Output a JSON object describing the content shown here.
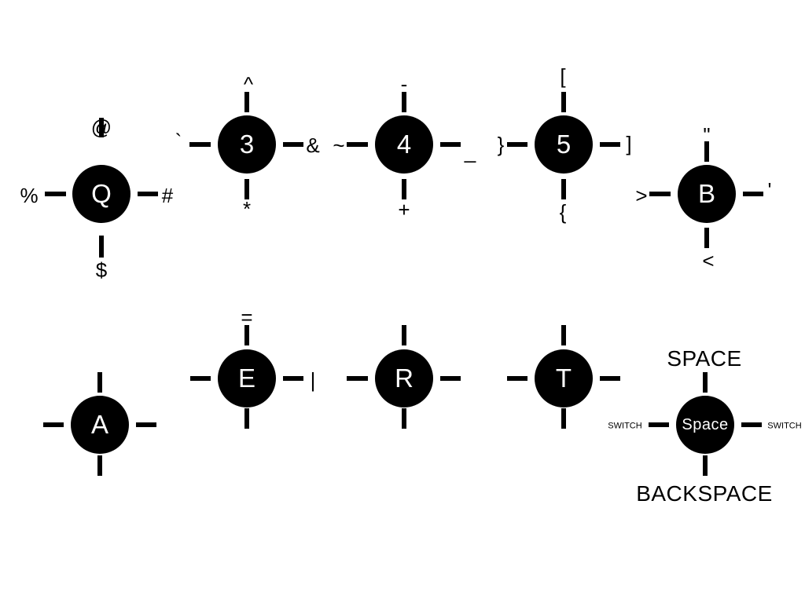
{
  "keys": [
    {
      "id": "q",
      "label": "Q",
      "top": "@",
      "right": "#",
      "bottom": "$",
      "left": "%"
    },
    {
      "id": "3",
      "label": "3",
      "top": "^",
      "right": "&",
      "bottom": "*",
      "left": "`"
    },
    {
      "id": "4",
      "label": "4",
      "top": "-",
      "right": "_",
      "bottom": "+",
      "left": "~"
    },
    {
      "id": "5",
      "label": "5",
      "top": "[",
      "right": "]",
      "bottom": "{",
      "left": "}"
    },
    {
      "id": "b",
      "label": "B",
      "top": "\"",
      "right": "'",
      "bottom": "<",
      "left": ">"
    },
    {
      "id": "a",
      "label": "A",
      "top": "",
      "right": "",
      "bottom": "",
      "left": ""
    },
    {
      "id": "e",
      "label": "E",
      "top": "=",
      "right": "|",
      "bottom": "",
      "left": ""
    },
    {
      "id": "r",
      "label": "R",
      "top": "",
      "right": "",
      "bottom": "",
      "left": ""
    },
    {
      "id": "t",
      "label": "T",
      "top": "",
      "right": "",
      "bottom": "",
      "left": ""
    },
    {
      "id": "space",
      "label": "Space",
      "top": "SPACE",
      "right": "SWITCH",
      "bottom": "BACKSPACE",
      "left": "SWITCH"
    }
  ]
}
